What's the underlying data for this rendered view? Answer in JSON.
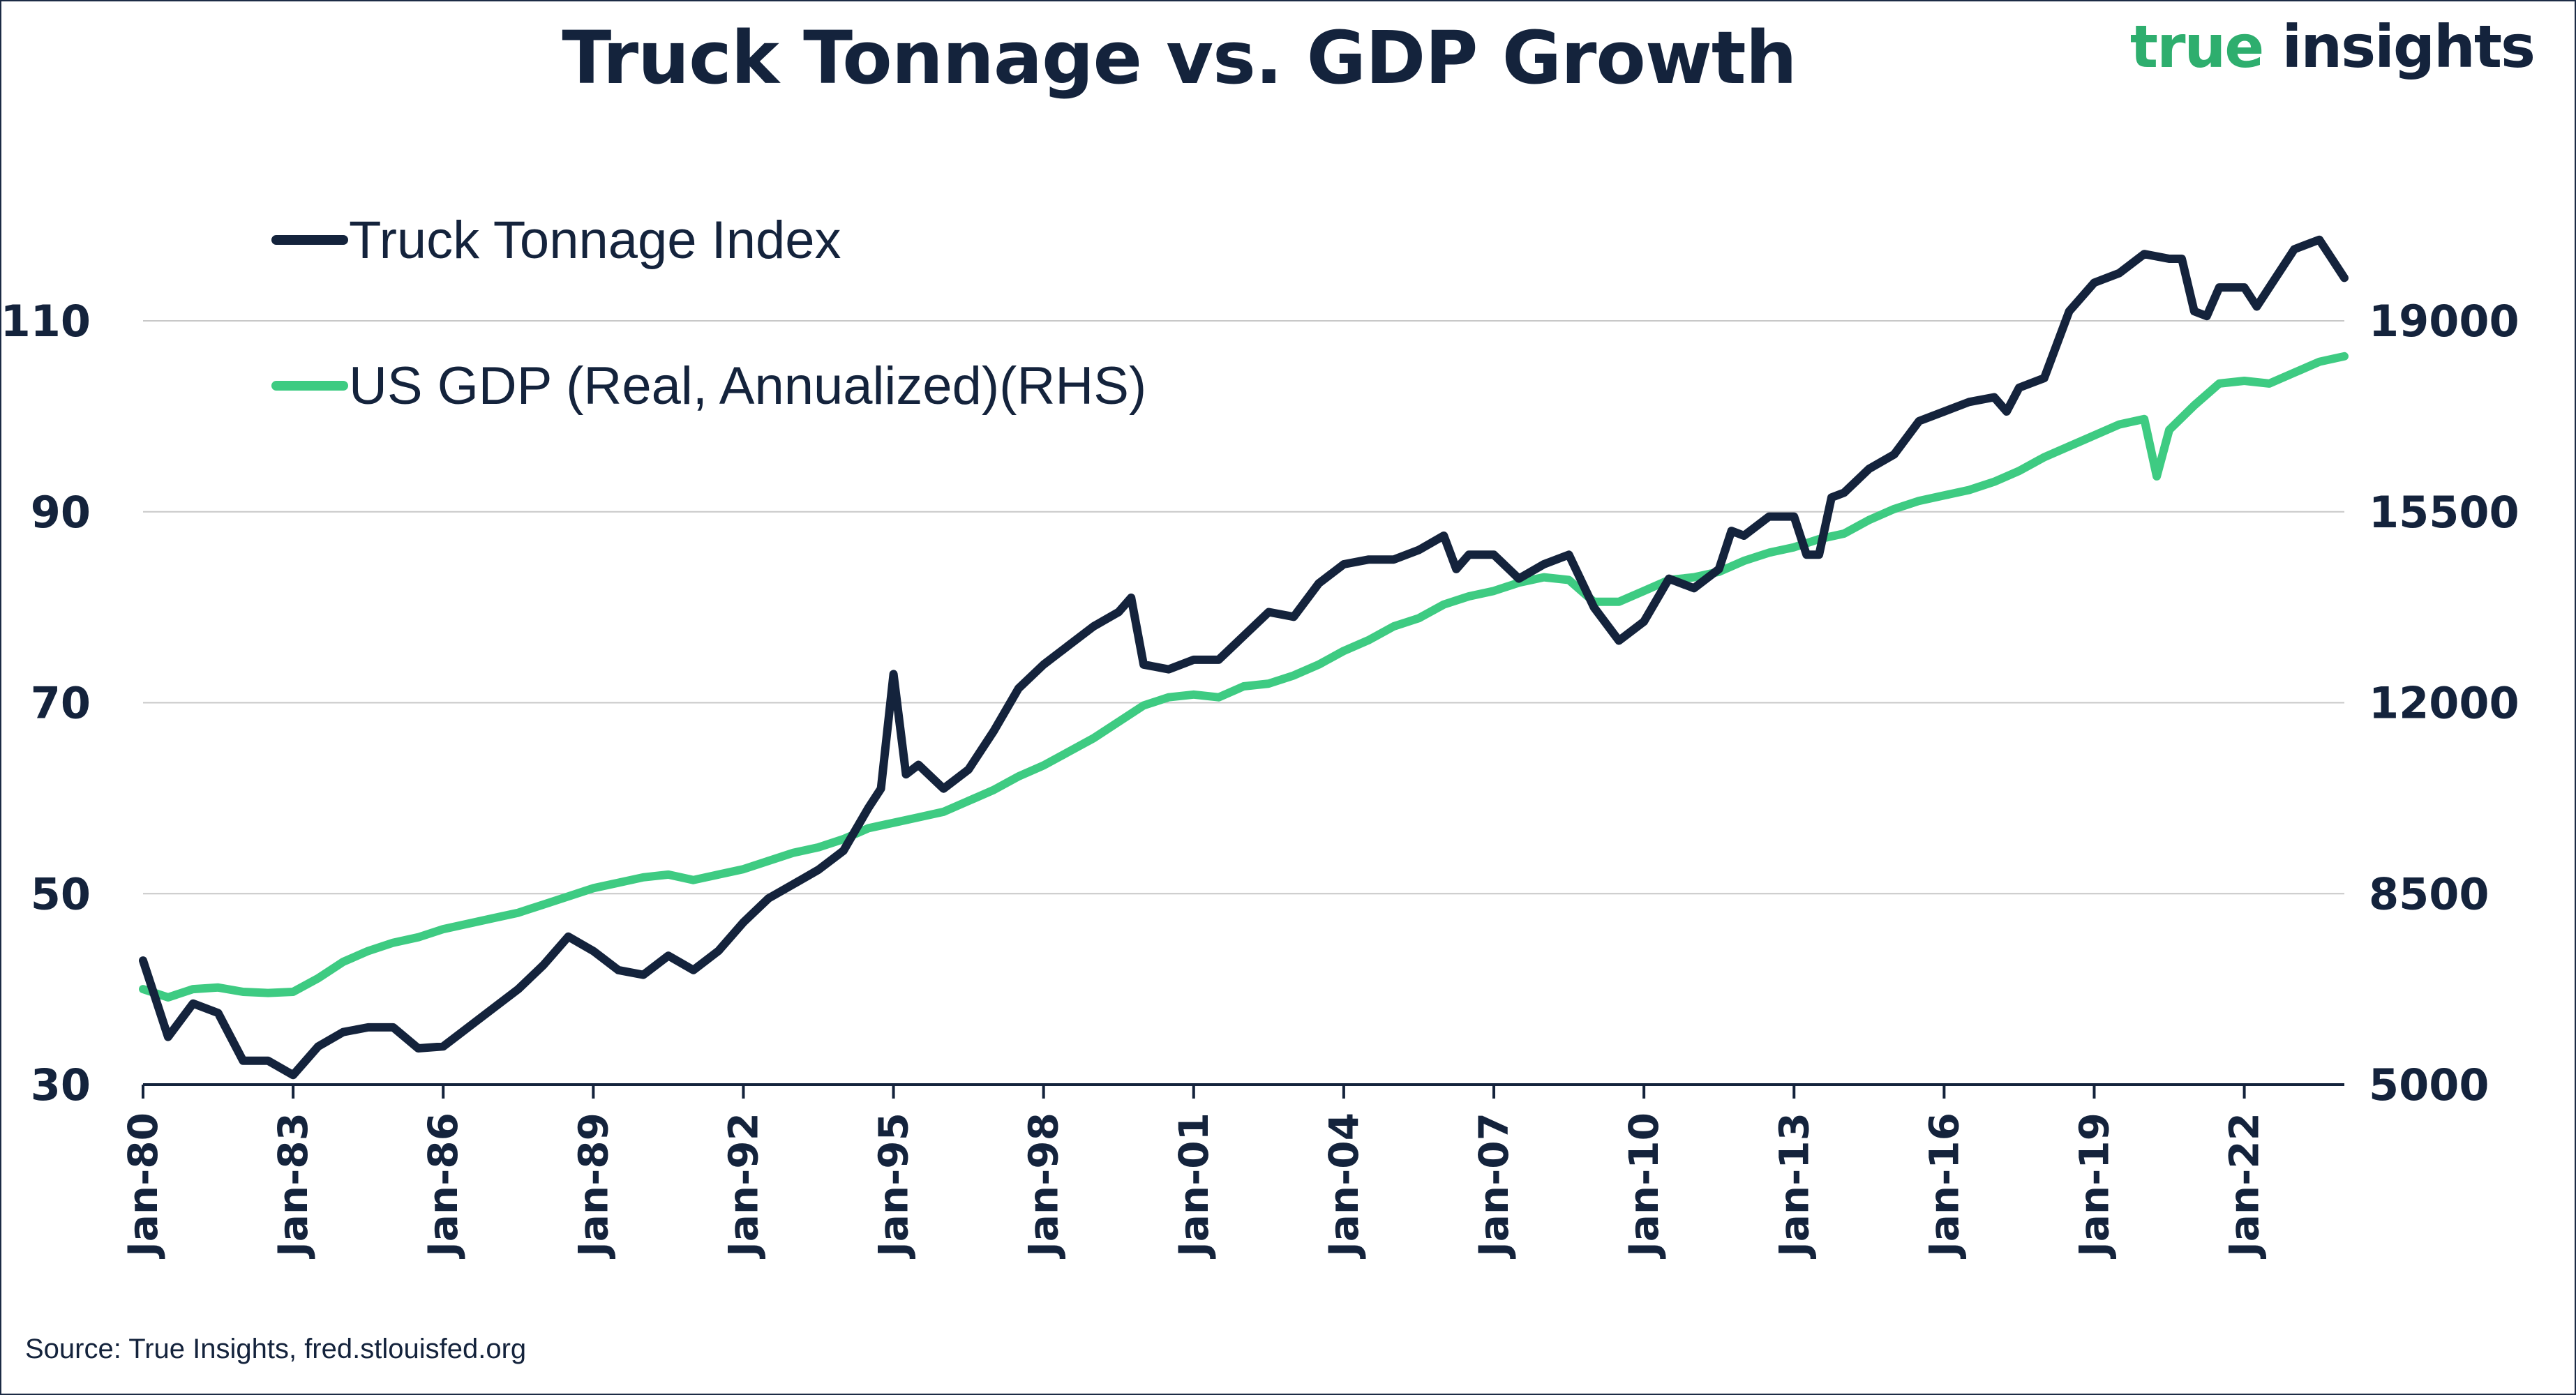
{
  "header": {
    "title": "Truck Tonnage vs. GDP Growth",
    "brand_part1": "true",
    "brand_part2": "insights"
  },
  "footer": {
    "source": "Source: True Insights, fred.stlouisfed.org"
  },
  "colors": {
    "truck": "#14233c",
    "gdp": "#3ecb82",
    "grid": "#c8c8c8",
    "axis": "#14233c"
  },
  "chart_data": {
    "type": "line",
    "title": "Truck Tonnage vs. GDP Growth",
    "xlabel": "",
    "ylabel": "",
    "y_left_lim": [
      30,
      110
    ],
    "y_left_ticks": [
      "30",
      "50",
      "70",
      "90",
      "110"
    ],
    "y_right_lim": [
      5000,
      19000
    ],
    "y_right_ticks": [
      "5000",
      "8500",
      "12000",
      "15500",
      "19000"
    ],
    "x_range": [
      "Jan-80",
      "Jan-24"
    ],
    "x_ticks": [
      "Jan-80",
      "Jan-83",
      "Jan-86",
      "Jan-89",
      "Jan-92",
      "Jan-95",
      "Jan-98",
      "Jan-01",
      "Jan-04",
      "Jan-07",
      "Jan-10",
      "Jan-13",
      "Jan-16",
      "Jan-19",
      "Jan-22"
    ],
    "grid": true,
    "legend_position": "top-left",
    "series": [
      {
        "name": "Truck Tonnage Index",
        "axis": "left",
        "points": [
          [
            "Jan-80",
            43
          ],
          [
            "Jul-80",
            35
          ],
          [
            "Jan-81",
            38.5
          ],
          [
            "Jul-81",
            37.5
          ],
          [
            "Jan-82",
            32.5
          ],
          [
            "Jul-82",
            32.5
          ],
          [
            "Jan-83",
            31
          ],
          [
            "Jul-83",
            34
          ],
          [
            "Jan-84",
            35.5
          ],
          [
            "Jul-84",
            36
          ],
          [
            "Jan-85",
            36
          ],
          [
            "Jul-85",
            33.8
          ],
          [
            "Jan-86",
            34
          ],
          [
            "Jul-86",
            36
          ],
          [
            "Jan-87",
            38
          ],
          [
            "Jul-87",
            40
          ],
          [
            "Jan-88",
            42.5
          ],
          [
            "Jul-88",
            45.5
          ],
          [
            "Jan-89",
            44
          ],
          [
            "Jul-89",
            42
          ],
          [
            "Jan-90",
            41.5
          ],
          [
            "Jul-90",
            43.5
          ],
          [
            "Jan-91",
            42
          ],
          [
            "Jul-91",
            44
          ],
          [
            "Jan-92",
            47
          ],
          [
            "Jul-92",
            49.5
          ],
          [
            "Jan-93",
            51
          ],
          [
            "Jul-93",
            52.5
          ],
          [
            "Jan-94",
            54.5
          ],
          [
            "Jul-94",
            59
          ],
          [
            "Oct-94",
            61
          ],
          [
            "Jan-95",
            73
          ],
          [
            "Apr-95",
            62.5
          ],
          [
            "Jul-95",
            63.5
          ],
          [
            "Jan-96",
            61
          ],
          [
            "Jul-96",
            63
          ],
          [
            "Jan-97",
            67
          ],
          [
            "Jul-97",
            71.5
          ],
          [
            "Jan-98",
            74
          ],
          [
            "Jul-98",
            76
          ],
          [
            "Jan-99",
            78
          ],
          [
            "Jul-99",
            79.5
          ],
          [
            "Oct-99",
            81
          ],
          [
            "Jan-00",
            74
          ],
          [
            "Jul-00",
            73.5
          ],
          [
            "Jan-01",
            74.5
          ],
          [
            "Jul-01",
            74.5
          ],
          [
            "Jan-02",
            77
          ],
          [
            "Jul-02",
            79.5
          ],
          [
            "Jan-03",
            79
          ],
          [
            "Jul-03",
            82.5
          ],
          [
            "Jan-04",
            84.5
          ],
          [
            "Jul-04",
            85
          ],
          [
            "Jan-05",
            85
          ],
          [
            "Jul-05",
            86
          ],
          [
            "Jan-06",
            87.5
          ],
          [
            "Apr-06",
            84
          ],
          [
            "Jul-06",
            85.5
          ],
          [
            "Jan-07",
            85.5
          ],
          [
            "Jul-07",
            83
          ],
          [
            "Jan-08",
            84.5
          ],
          [
            "Jul-08",
            85.5
          ],
          [
            "Jan-09",
            80
          ],
          [
            "Jul-09",
            76.5
          ],
          [
            "Jan-10",
            78.5
          ],
          [
            "Jul-10",
            83
          ],
          [
            "Jan-11",
            82
          ],
          [
            "Jul-11",
            84
          ],
          [
            "Oct-11",
            88
          ],
          [
            "Jan-12",
            87.5
          ],
          [
            "Jul-12",
            89.5
          ],
          [
            "Jan-13",
            89.5
          ],
          [
            "Apr-13",
            85.5
          ],
          [
            "Jul-13",
            85.5
          ],
          [
            "Oct-13",
            91.5
          ],
          [
            "Jan-14",
            92
          ],
          [
            "Jul-14",
            94.5
          ],
          [
            "Jan-15",
            96
          ],
          [
            "Jul-15",
            99.5
          ],
          [
            "Jan-16",
            100.5
          ],
          [
            "Jul-16",
            101.5
          ],
          [
            "Jan-17",
            102
          ],
          [
            "Apr-17",
            100.5
          ],
          [
            "Jul-17",
            103
          ],
          [
            "Jan-18",
            104
          ],
          [
            "Jul-18",
            111
          ],
          [
            "Jan-19",
            114
          ],
          [
            "Jul-19",
            115
          ],
          [
            "Jan-20",
            117
          ],
          [
            "Jul-20",
            116.5
          ],
          [
            "Oct-20",
            116.5
          ],
          [
            "Jan-21",
            111
          ],
          [
            "Apr-21",
            110.5
          ],
          [
            "Jul-21",
            113.5
          ],
          [
            "Jan-22",
            113.5
          ],
          [
            "Apr-22",
            111.5
          ],
          [
            "Jul-22",
            113.5
          ],
          [
            "Jan-23",
            117.5
          ],
          [
            "Jul-23",
            118.5
          ],
          [
            "Oct-23",
            116.5
          ],
          [
            "Jan-24",
            114.5
          ]
        ]
      },
      {
        "name": "US GDP (Real, Annualized)(RHS)",
        "axis": "right",
        "points": [
          [
            "Jan-80",
            6750
          ],
          [
            "Jul-80",
            6600
          ],
          [
            "Jan-81",
            6750
          ],
          [
            "Jul-81",
            6780
          ],
          [
            "Jan-82",
            6700
          ],
          [
            "Jul-82",
            6680
          ],
          [
            "Jan-83",
            6700
          ],
          [
            "Jul-83",
            6950
          ],
          [
            "Jan-84",
            7250
          ],
          [
            "Jul-84",
            7450
          ],
          [
            "Jan-85",
            7600
          ],
          [
            "Jul-85",
            7700
          ],
          [
            "Jan-86",
            7850
          ],
          [
            "Jul-86",
            7950
          ],
          [
            "Jan-87",
            8050
          ],
          [
            "Jul-87",
            8150
          ],
          [
            "Jan-88",
            8300
          ],
          [
            "Jul-88",
            8450
          ],
          [
            "Jan-89",
            8600
          ],
          [
            "Jul-89",
            8700
          ],
          [
            "Jan-90",
            8800
          ],
          [
            "Jul-90",
            8850
          ],
          [
            "Jan-91",
            8750
          ],
          [
            "Jul-91",
            8850
          ],
          [
            "Jan-92",
            8950
          ],
          [
            "Jul-92",
            9100
          ],
          [
            "Jan-93",
            9250
          ],
          [
            "Jul-93",
            9350
          ],
          [
            "Jan-94",
            9500
          ],
          [
            "Jul-94",
            9700
          ],
          [
            "Jan-95",
            9800
          ],
          [
            "Jul-95",
            9900
          ],
          [
            "Jan-96",
            10000
          ],
          [
            "Jul-96",
            10200
          ],
          [
            "Jan-97",
            10400
          ],
          [
            "Jul-97",
            10650
          ],
          [
            "Jan-98",
            10850
          ],
          [
            "Jul-98",
            11100
          ],
          [
            "Jan-99",
            11350
          ],
          [
            "Jul-99",
            11650
          ],
          [
            "Jan-00",
            11950
          ],
          [
            "Jul-00",
            12100
          ],
          [
            "Jan-01",
            12150
          ],
          [
            "Jul-01",
            12100
          ],
          [
            "Jan-02",
            12300
          ],
          [
            "Jul-02",
            12350
          ],
          [
            "Jan-03",
            12500
          ],
          [
            "Jul-03",
            12700
          ],
          [
            "Jan-04",
            12950
          ],
          [
            "Jul-04",
            13150
          ],
          [
            "Jan-05",
            13400
          ],
          [
            "Jul-05",
            13550
          ],
          [
            "Jan-06",
            13800
          ],
          [
            "Jul-06",
            13950
          ],
          [
            "Jan-07",
            14050
          ],
          [
            "Jul-07",
            14200
          ],
          [
            "Jan-08",
            14300
          ],
          [
            "Jul-08",
            14250
          ],
          [
            "Jan-09",
            13850
          ],
          [
            "Jul-09",
            13850
          ],
          [
            "Jan-10",
            14050
          ],
          [
            "Jul-10",
            14250
          ],
          [
            "Jan-11",
            14300
          ],
          [
            "Jul-11",
            14400
          ],
          [
            "Jan-12",
            14600
          ],
          [
            "Jul-12",
            14750
          ],
          [
            "Jan-13",
            14850
          ],
          [
            "Jul-13",
            15000
          ],
          [
            "Jan-14",
            15100
          ],
          [
            "Jul-14",
            15350
          ],
          [
            "Jan-15",
            15550
          ],
          [
            "Jul-15",
            15700
          ],
          [
            "Jan-16",
            15800
          ],
          [
            "Jul-16",
            15900
          ],
          [
            "Jan-17",
            16050
          ],
          [
            "Jul-17",
            16250
          ],
          [
            "Jan-18",
            16500
          ],
          [
            "Jul-18",
            16700
          ],
          [
            "Jan-19",
            16900
          ],
          [
            "Jul-19",
            17100
          ],
          [
            "Jan-20",
            17200
          ],
          [
            "Apr-20",
            16150
          ],
          [
            "Jul-20",
            17000
          ],
          [
            "Jan-21",
            17450
          ],
          [
            "Jul-21",
            17850
          ],
          [
            "Jan-22",
            17900
          ],
          [
            "Jul-22",
            17850
          ],
          [
            "Jan-23",
            18050
          ],
          [
            "Jul-23",
            18250
          ],
          [
            "Jan-24",
            18350
          ]
        ]
      }
    ]
  }
}
